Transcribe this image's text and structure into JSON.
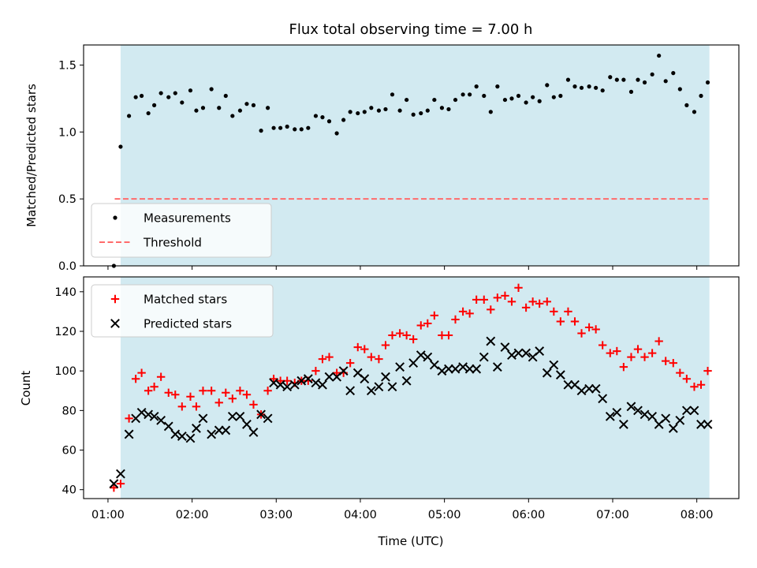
{
  "chart_data": {
    "title": "Flux total observing time = 7.00 h",
    "xlabel": "Time (UTC)",
    "x_ticks": [
      "01:00",
      "02:00",
      "03:00",
      "04:00",
      "05:00",
      "06:00",
      "07:00",
      "08:00"
    ],
    "x_tick_hours": [
      1,
      2,
      3,
      4,
      5,
      6,
      7,
      8
    ],
    "xlim_hours": [
      0.71,
      8.5
    ],
    "observing_span_hours": [
      1.15,
      8.15
    ],
    "shade_color": "#add8e6",
    "panels": [
      {
        "type": "scatter",
        "ylabel": "Matched/Predicted stars",
        "ylim": [
          0,
          1.65
        ],
        "yticks": [
          0.0,
          0.5,
          1.0,
          1.5
        ],
        "ytick_labels": [
          "0.0",
          "0.5",
          "1.0",
          "1.5"
        ],
        "legend_position": "lower-left",
        "threshold": {
          "name": "Threshold",
          "value": 0.5,
          "x_range_hours": [
            1.08,
            8.15
          ],
          "color": "#ff6b6b"
        },
        "series": [
          {
            "name": "Measurements",
            "marker": "dot",
            "color": "#000000",
            "x": [
              1.07,
              1.15,
              1.25,
              1.33,
              1.4,
              1.48,
              1.55,
              1.63,
              1.72,
              1.8,
              1.88,
              1.98,
              2.05,
              2.13,
              2.23,
              2.32,
              2.4,
              2.48,
              2.57,
              2.65,
              2.73,
              2.82,
              2.9,
              2.97,
              3.05,
              3.13,
              3.22,
              3.3,
              3.38,
              3.47,
              3.55,
              3.63,
              3.72,
              3.8,
              3.88,
              3.97,
              4.05,
              4.13,
              4.22,
              4.3,
              4.38,
              4.47,
              4.55,
              4.63,
              4.72,
              4.8,
              4.88,
              4.97,
              5.05,
              5.13,
              5.22,
              5.3,
              5.38,
              5.47,
              5.55,
              5.63,
              5.72,
              5.8,
              5.88,
              5.97,
              6.05,
              6.13,
              6.22,
              6.3,
              6.38,
              6.47,
              6.55,
              6.63,
              6.72,
              6.8,
              6.88,
              6.97,
              7.05,
              7.13,
              7.22,
              7.3,
              7.38,
              7.47,
              7.55,
              7.63,
              7.72,
              7.8,
              7.88,
              7.97,
              8.05,
              8.13
            ],
            "y": [
              0.0,
              0.89,
              1.12,
              1.26,
              1.27,
              1.14,
              1.2,
              1.29,
              1.26,
              1.29,
              1.22,
              1.31,
              1.16,
              1.18,
              1.32,
              1.18,
              1.27,
              1.12,
              1.16,
              1.21,
              1.2,
              1.01,
              1.18,
              1.03,
              1.03,
              1.04,
              1.02,
              1.02,
              1.03,
              1.12,
              1.11,
              1.08,
              0.99,
              1.09,
              1.15,
              1.14,
              1.15,
              1.18,
              1.16,
              1.17,
              1.28,
              1.16,
              1.24,
              1.13,
              1.14,
              1.16,
              1.24,
              1.18,
              1.17,
              1.24,
              1.28,
              1.28,
              1.34,
              1.27,
              1.15,
              1.34,
              1.24,
              1.25,
              1.27,
              1.22,
              1.26,
              1.23,
              1.35,
              1.26,
              1.27,
              1.39,
              1.34,
              1.33,
              1.34,
              1.33,
              1.31,
              1.41,
              1.39,
              1.39,
              1.3,
              1.39,
              1.37,
              1.43,
              1.57,
              1.38,
              1.44,
              1.32,
              1.2,
              1.15,
              1.27,
              1.37
            ]
          }
        ]
      },
      {
        "type": "scatter",
        "ylabel": "Count",
        "ylim": [
          35.5,
          147.5
        ],
        "yticks": [
          40,
          60,
          80,
          100,
          120,
          140
        ],
        "ytick_labels": [
          "40",
          "60",
          "80",
          "100",
          "120",
          "140"
        ],
        "legend_position": "upper-left",
        "series": [
          {
            "name": "Matched stars",
            "marker": "plus",
            "color": "#ff0000",
            "x": [
              1.07,
              1.15,
              1.25,
              1.33,
              1.4,
              1.48,
              1.55,
              1.63,
              1.72,
              1.8,
              1.88,
              1.98,
              2.05,
              2.13,
              2.23,
              2.32,
              2.4,
              2.48,
              2.57,
              2.65,
              2.73,
              2.82,
              2.9,
              2.97,
              3.05,
              3.13,
              3.22,
              3.3,
              3.38,
              3.47,
              3.55,
              3.63,
              3.72,
              3.8,
              3.88,
              3.97,
              4.05,
              4.13,
              4.22,
              4.3,
              4.38,
              4.47,
              4.55,
              4.63,
              4.72,
              4.8,
              4.88,
              4.97,
              5.05,
              5.13,
              5.22,
              5.3,
              5.38,
              5.47,
              5.55,
              5.63,
              5.72,
              5.8,
              5.88,
              5.97,
              6.05,
              6.13,
              6.22,
              6.3,
              6.38,
              6.47,
              6.55,
              6.63,
              6.72,
              6.8,
              6.88,
              6.97,
              7.05,
              7.13,
              7.22,
              7.3,
              7.38,
              7.47,
              7.55,
              7.63,
              7.72,
              7.8,
              7.88,
              7.97,
              8.05,
              8.13
            ],
            "y": [
              41,
              43,
              76,
              96,
              99,
              90,
              92,
              97,
              89,
              88,
              82,
              87,
              82,
              90,
              90,
              84,
              89,
              86,
              90,
              88,
              83,
              78,
              90,
              96,
              95,
              95,
              94,
              95,
              95,
              100,
              106,
              107,
              99,
              99,
              104,
              112,
              111,
              107,
              106,
              113,
              118,
              119,
              118,
              116,
              123,
              124,
              128,
              118,
              118,
              126,
              130,
              129,
              136,
              136,
              131,
              137,
              138,
              135,
              142,
              132,
              135,
              134,
              135,
              130,
              125,
              130,
              125,
              119,
              122,
              121,
              113,
              109,
              110,
              102,
              107,
              111,
              107,
              109,
              115,
              105,
              104,
              99,
              96,
              92,
              93,
              100
            ]
          },
          {
            "name": "Predicted stars",
            "marker": "cross",
            "color": "#000000",
            "x": [
              1.07,
              1.15,
              1.25,
              1.33,
              1.4,
              1.48,
              1.55,
              1.63,
              1.72,
              1.8,
              1.88,
              1.98,
              2.05,
              2.13,
              2.23,
              2.32,
              2.4,
              2.48,
              2.57,
              2.65,
              2.73,
              2.82,
              2.9,
              2.97,
              3.05,
              3.13,
              3.22,
              3.3,
              3.38,
              3.47,
              3.55,
              3.63,
              3.72,
              3.8,
              3.88,
              3.97,
              4.05,
              4.13,
              4.22,
              4.3,
              4.38,
              4.47,
              4.55,
              4.63,
              4.72,
              4.8,
              4.88,
              4.97,
              5.05,
              5.13,
              5.22,
              5.3,
              5.38,
              5.47,
              5.55,
              5.63,
              5.72,
              5.8,
              5.88,
              5.97,
              6.05,
              6.13,
              6.22,
              6.3,
              6.38,
              6.47,
              6.55,
              6.63,
              6.72,
              6.8,
              6.88,
              6.97,
              7.05,
              7.13,
              7.22,
              7.3,
              7.38,
              7.47,
              7.55,
              7.63,
              7.72,
              7.8,
              7.88,
              7.97,
              8.05,
              8.13
            ],
            "y": [
              43,
              48,
              68,
              76,
              79,
              78,
              77,
              75,
              72,
              68,
              67,
              66,
              71,
              76,
              68,
              70,
              70,
              77,
              77,
              73,
              69,
              78,
              76,
              94,
              93,
              92,
              93,
              95,
              96,
              94,
              93,
              97,
              97,
              100,
              90,
              99,
              96,
              90,
              92,
              97,
              92,
              102,
              95,
              104,
              108,
              107,
              103,
              100,
              101,
              101,
              102,
              101,
              101,
              107,
              115,
              102,
              112,
              108,
              109,
              109,
              107,
              110,
              99,
              103,
              98,
              93,
              93,
              90,
              91,
              91,
              86,
              77,
              79,
              73,
              82,
              80,
              78,
              77,
              73,
              76,
              71,
              75,
              80,
              80,
              73,
              73
            ]
          }
        ]
      }
    ]
  }
}
